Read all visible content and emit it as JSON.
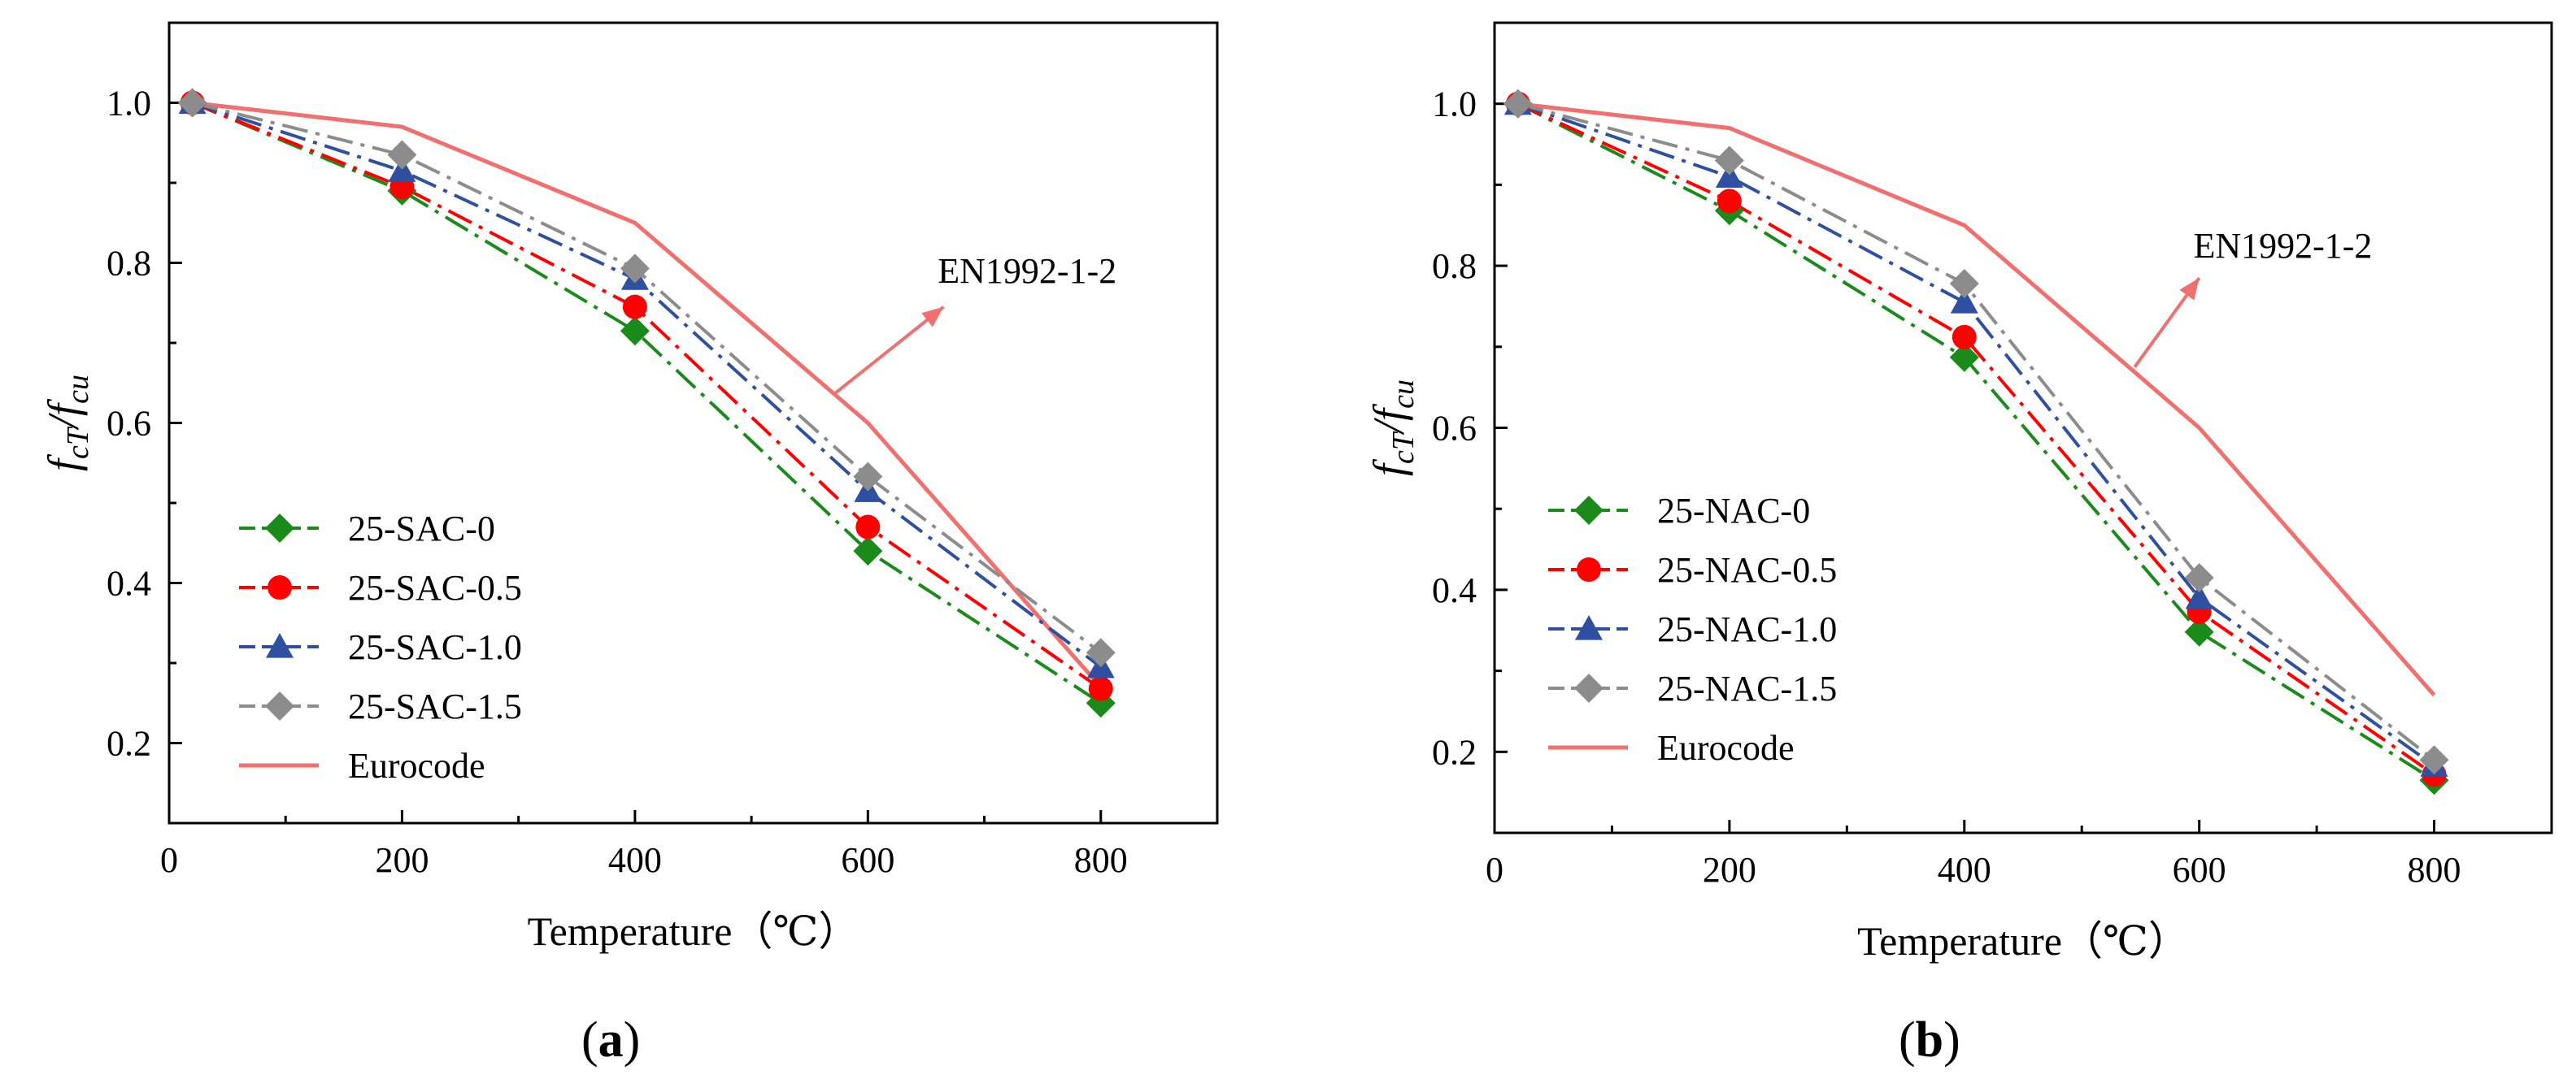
{
  "chart_data": [
    {
      "type": "line",
      "panel_label": "a",
      "xlabel": "Temperature（℃）",
      "ylabel_parts": {
        "f": "f",
        "sub1": "cT",
        "slash": "/",
        "f2": "f",
        "sub2": "cu"
      },
      "xlim": [
        0,
        900
      ],
      "ylim": [
        0.1,
        1.1
      ],
      "xticks": [
        0,
        200,
        400,
        600,
        800
      ],
      "yticks": [
        0.2,
        0.4,
        0.6,
        0.8,
        1.0
      ],
      "xtick_labels": [
        "0",
        "200",
        "400",
        "600",
        "800"
      ],
      "ytick_labels": [
        "0.2",
        "0.4",
        "0.6",
        "0.8",
        "1.0"
      ],
      "x": [
        20,
        200,
        400,
        600,
        800
      ],
      "series": [
        {
          "name": "25-SAC-0",
          "color": "#1a8a1a",
          "marker": "diamond",
          "dash": "dashdot",
          "values": [
            1.0,
            0.89,
            0.715,
            0.44,
            0.25
          ]
        },
        {
          "name": "25-SAC-0.5",
          "color": "#ff0000",
          "marker": "circle",
          "dash": "dashdot",
          "values": [
            1.0,
            0.895,
            0.745,
            0.47,
            0.268
          ]
        },
        {
          "name": "25-SAC-1.0",
          "color": "#2f4fa0",
          "marker": "triangle",
          "dash": "dashdot",
          "values": [
            1.0,
            0.915,
            0.78,
            0.515,
            0.295
          ]
        },
        {
          "name": "25-SAC-1.5",
          "color": "#8c8c8c",
          "marker": "diamond",
          "dash": "dashdot",
          "values": [
            1.0,
            0.935,
            0.793,
            0.533,
            0.313
          ]
        }
      ],
      "eurocode": {
        "name": "Eurocode",
        "color": "#f07070",
        "x": [
          20,
          200,
          400,
          600,
          800
        ],
        "values": [
          1.0,
          0.97,
          0.85,
          0.6,
          0.27
        ]
      },
      "annotation": {
        "text": "EN1992-1-2",
        "arrow_from": [
          570,
          0.635
        ],
        "arrow_to": [
          665,
          0.745
        ],
        "text_at": [
          660,
          0.775
        ]
      }
    },
    {
      "type": "line",
      "panel_label": "b",
      "xlabel": "Temperature（℃）",
      "ylabel_parts": {
        "f": "f",
        "sub1": "cT",
        "slash": "/",
        "f2": "f",
        "sub2": "cu"
      },
      "xlim": [
        0,
        900
      ],
      "ylim": [
        0.1,
        1.1
      ],
      "xticks": [
        0,
        200,
        400,
        600,
        800
      ],
      "yticks": [
        0.2,
        0.4,
        0.6,
        0.8,
        1.0
      ],
      "xtick_labels": [
        "0",
        "200",
        "400",
        "600",
        "800"
      ],
      "ytick_labels": [
        "0.2",
        "0.4",
        "0.6",
        "0.8",
        "1.0"
      ],
      "x": [
        20,
        200,
        400,
        600,
        800
      ],
      "series": [
        {
          "name": "25-NAC-0",
          "color": "#1a8a1a",
          "marker": "diamond",
          "dash": "dashdot",
          "values": [
            1.0,
            0.868,
            0.687,
            0.348,
            0.165
          ]
        },
        {
          "name": "25-NAC-0.5",
          "color": "#ff0000",
          "marker": "circle",
          "dash": "dashdot",
          "values": [
            1.0,
            0.88,
            0.712,
            0.373,
            0.172
          ]
        },
        {
          "name": "25-NAC-1.0",
          "color": "#2f4fa0",
          "marker": "triangle",
          "dash": "dashdot",
          "values": [
            1.0,
            0.91,
            0.755,
            0.39,
            0.183
          ]
        },
        {
          "name": "25-NAC-1.5",
          "color": "#8c8c8c",
          "marker": "diamond",
          "dash": "dashdot",
          "values": [
            1.0,
            0.93,
            0.778,
            0.415,
            0.19
          ]
        }
      ],
      "eurocode": {
        "name": "Eurocode",
        "color": "#f07070",
        "x": [
          20,
          200,
          400,
          600,
          800
        ],
        "values": [
          1.0,
          0.97,
          0.85,
          0.6,
          0.27
        ]
      },
      "annotation": {
        "text": "EN1992-1-2",
        "arrow_from": [
          545,
          0.675
        ],
        "arrow_to": [
          600,
          0.785
        ],
        "text_at": [
          595,
          0.81
        ]
      }
    }
  ]
}
